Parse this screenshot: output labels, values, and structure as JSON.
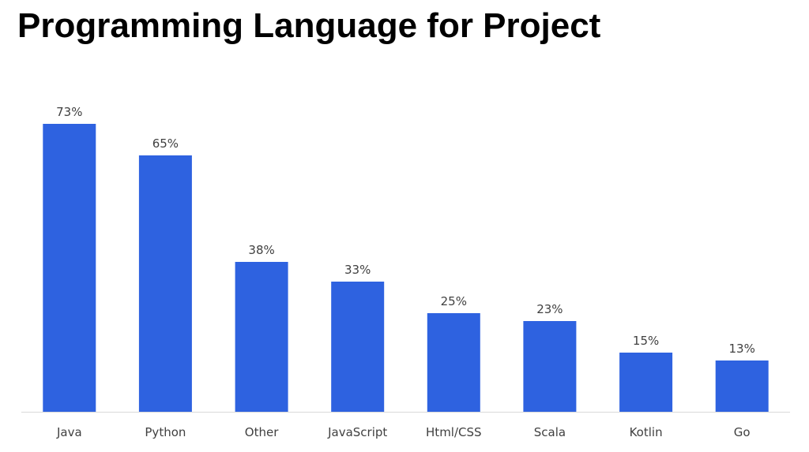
{
  "chart_data": {
    "type": "bar",
    "title": "Programming Language for Project",
    "categories": [
      "Java",
      "Python",
      "Other",
      "JavaScript",
      "Html/CSS",
      "Scala",
      "Kotlin",
      "Go"
    ],
    "values": [
      73,
      65,
      38,
      33,
      25,
      23,
      15,
      13
    ],
    "value_labels": [
      "73%",
      "65%",
      "38%",
      "33%",
      "25%",
      "23%",
      "15%",
      "13%"
    ],
    "unit": "%",
    "xlabel": "",
    "ylabel": "",
    "ylim": [
      0,
      80
    ],
    "grid": false,
    "legend": "none",
    "bar_color": "#2E62E0",
    "axis_color": "#D9D9D9"
  }
}
